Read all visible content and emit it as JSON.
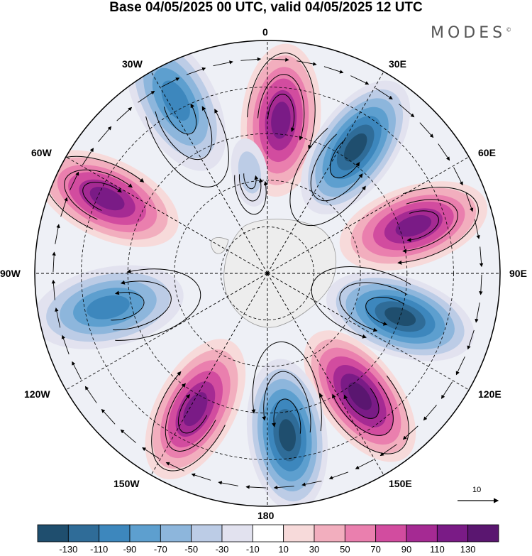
{
  "title": "Base 04/05/2025 00 UTC, valid 04/05/2025 12 UTC",
  "logo": "MODES",
  "logo_mark": "©",
  "longitude_labels": {
    "lon_0": "0",
    "lon_30e": "30E",
    "lon_60e": "60E",
    "lon_90e": "90E",
    "lon_120e": "120E",
    "lon_150e": "150E",
    "lon_180": "180",
    "lon_150w": "150W",
    "lon_120w": "120W",
    "lon_90w": "90W",
    "lon_60w": "60W",
    "lon_30w": "30W"
  },
  "vector_reference": "10",
  "colorbar": {
    "ticks": [
      "-130",
      "-110",
      "-90",
      "-70",
      "-50",
      "-30",
      "-10",
      "10",
      "30",
      "50",
      "70",
      "90",
      "110",
      "130"
    ],
    "colors": [
      "#1f4e6e",
      "#2f6c98",
      "#3d87bd",
      "#5d9fcf",
      "#8db6dc",
      "#bccce6",
      "#e2e2ef",
      "#ffffff",
      "#f7dada",
      "#f2aebe",
      "#ea7fae",
      "#d24c9f",
      "#a52a93",
      "#7a1b86",
      "#5a1670"
    ]
  },
  "map_data": {
    "type": "south polar stereographic anomaly field with streamlines",
    "anomalies": [
      {
        "lon": 5,
        "lat": -57,
        "value": 120
      },
      {
        "lon": 35,
        "lat": -57,
        "value": -130
      },
      {
        "lon": 72,
        "lat": -57,
        "value": 115
      },
      {
        "lon": 108,
        "lat": -60,
        "value": -130
      },
      {
        "lon": 143,
        "lat": -57,
        "value": 130
      },
      {
        "lon": 173,
        "lat": -55,
        "value": -130
      },
      {
        "lon": -152,
        "lat": -57,
        "value": 125
      },
      {
        "lon": -102,
        "lat": -55,
        "value": -100
      },
      {
        "lon": -65,
        "lat": -52,
        "value": 110
      },
      {
        "lon": -28,
        "lat": -48,
        "value": -90
      },
      {
        "lon": -10,
        "lat": -68,
        "value": -40
      }
    ]
  }
}
